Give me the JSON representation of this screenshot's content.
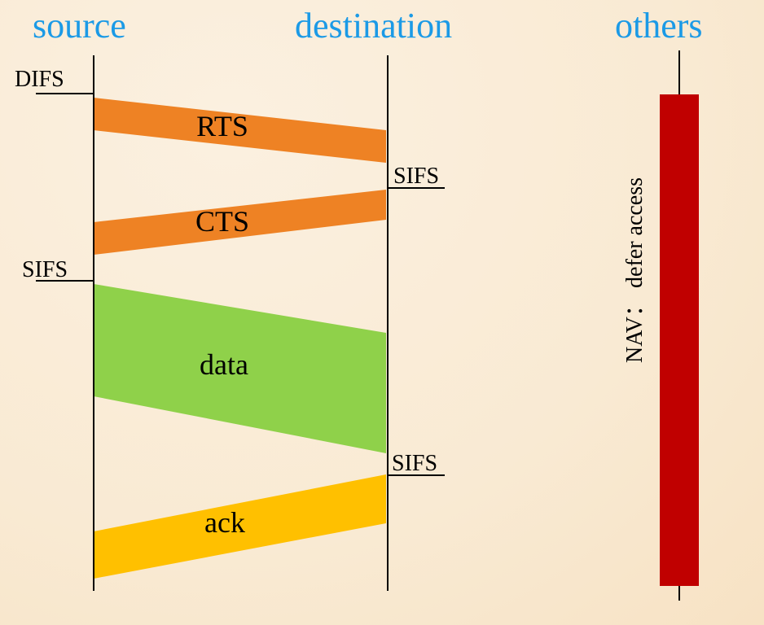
{
  "headers": {
    "source": "source",
    "destination": "destination",
    "others": "others"
  },
  "frames": {
    "rts": "RTS",
    "cts": "CTS",
    "data": "data",
    "ack": "ack"
  },
  "intervals": {
    "difs": "DIFS",
    "sifs_source": "SIFS",
    "sifs_dest_1": "SIFS",
    "sifs_dest_2": "SIFS"
  },
  "nav_label": "NAV： defer access",
  "colors": {
    "header_text": "#1b9ae6",
    "rts_cts": "#ee8224",
    "data": "#8fd14a",
    "ack": "#ffc000",
    "nav_bar": "#c00000",
    "background": "#faecd8"
  }
}
